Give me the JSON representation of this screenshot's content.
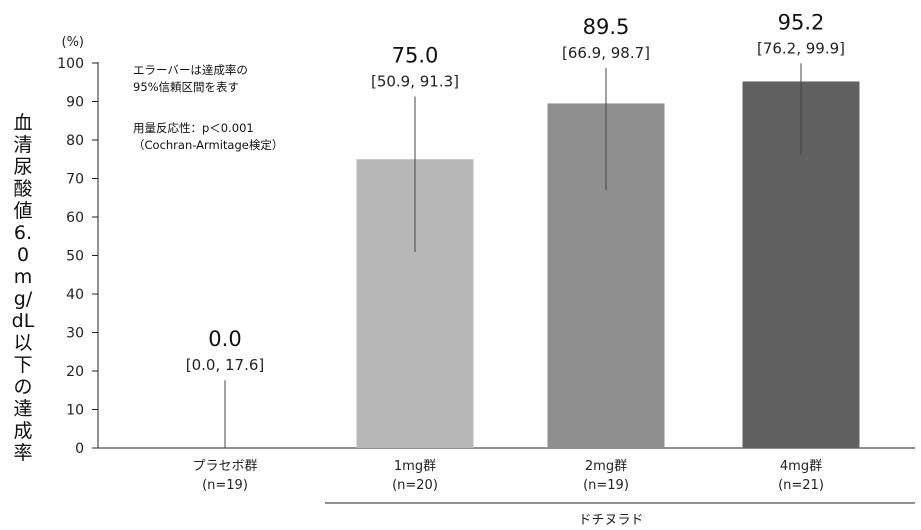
{
  "chart_data": {
    "type": "bar",
    "y_unit": "(%)",
    "ylabel": "血清尿酸値6.0mg/dL以下の達成率",
    "ylim": [
      0,
      100
    ],
    "yticks": [
      0,
      10,
      20,
      30,
      40,
      50,
      60,
      70,
      80,
      90,
      100
    ],
    "grid": false,
    "group_label": "ドチヌラド",
    "categories": [
      {
        "label": "プラセボ群",
        "n": "(n=19)"
      },
      {
        "label": "1mg群",
        "n": "(n=20)"
      },
      {
        "label": "2mg群",
        "n": "(n=19)"
      },
      {
        "label": "4mg群",
        "n": "(n=21)"
      }
    ],
    "series": [
      {
        "values": [
          0.0,
          75.0,
          89.5,
          95.2
        ],
        "value_labels": [
          "0.0",
          "75.0",
          "89.5",
          "95.2"
        ],
        "ci_lower": [
          0.0,
          50.9,
          66.9,
          76.2
        ],
        "ci_upper": [
          17.6,
          91.3,
          98.7,
          99.9
        ],
        "ci_labels": [
          "[0.0, 17.6]",
          "[50.9, 91.3]",
          "[66.9, 98.7]",
          "[76.2, 99.9]"
        ],
        "colors": [
          "#cccccc",
          "#b7b7b7",
          "#8f8f8f",
          "#616161"
        ]
      }
    ],
    "annotations": [
      "エラーバーは達成率の\n95%信頼区間を表す",
      "用量反応性：p＜0.001\n（Cochran-Armitage検定）"
    ]
  }
}
